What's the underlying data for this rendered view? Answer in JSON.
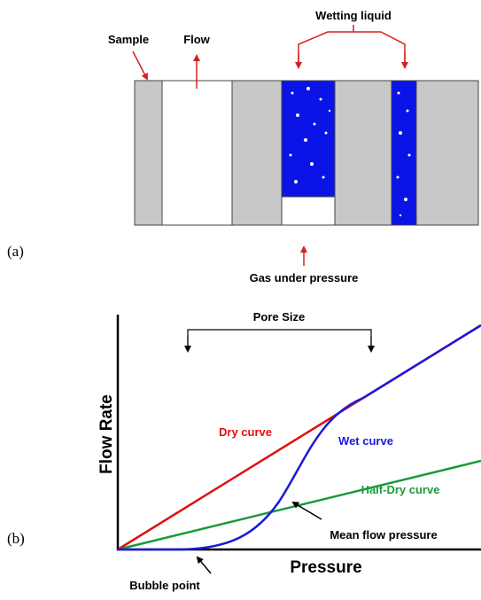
{
  "panel_a": {
    "label": "(a)",
    "sample": "Sample",
    "flow": "Flow",
    "wetting_liquid": "Wetting liquid",
    "gas": "Gas under pressure"
  },
  "panel_b": {
    "label": "(b)",
    "pore_size": "Pore Size",
    "y_axis": "Flow Rate",
    "x_axis": "Pressure",
    "dry_curve": "Dry curve",
    "wet_curve": "Wet curve",
    "half_dry_curve": "Half-Dry curve",
    "mean_flow_pressure": "Mean flow pressure",
    "bubble_point": "Bubble point"
  }
}
